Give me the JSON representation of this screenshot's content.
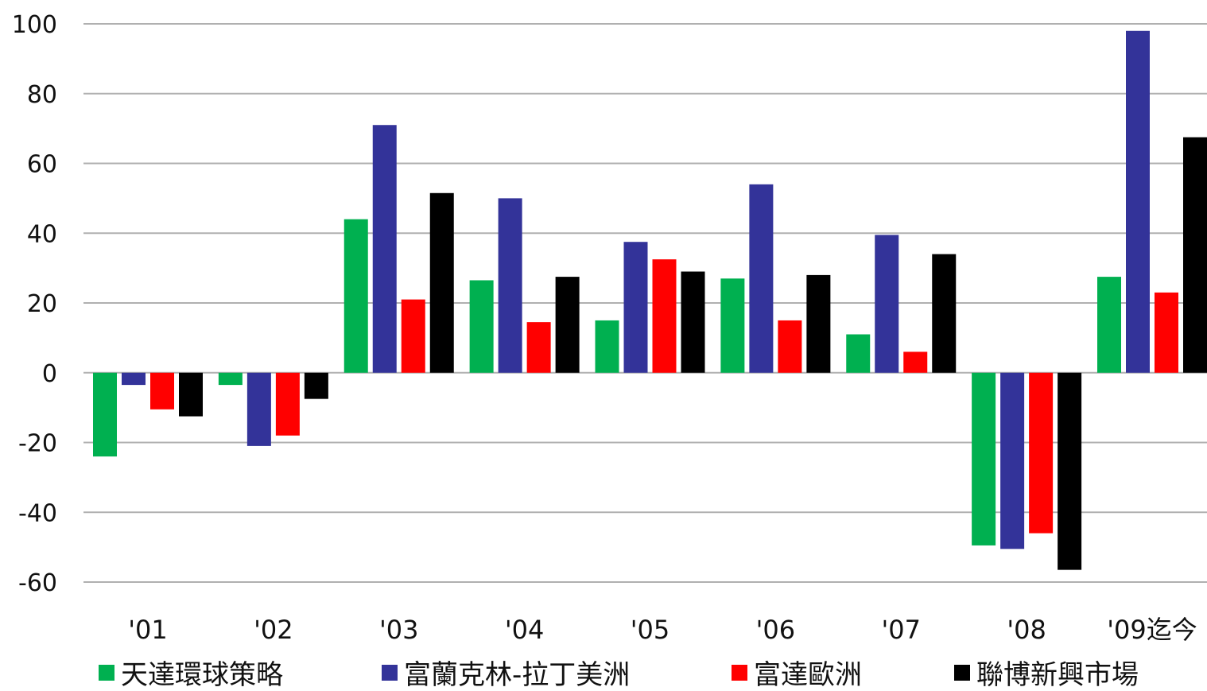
{
  "chart_data": {
    "type": "bar",
    "categories": [
      "'01",
      "'02",
      "'03",
      "'04",
      "'05",
      "'06",
      "'07",
      "'08",
      "'09迄今"
    ],
    "series": [
      {
        "name": "天達環球策略",
        "color": "#00b050",
        "values": [
          -24,
          -3.5,
          44,
          26.5,
          15,
          27,
          11,
          -49.5,
          27.5
        ]
      },
      {
        "name": "富蘭克林-拉丁美洲",
        "color": "#333399",
        "values": [
          -3.5,
          -21,
          71,
          50,
          37.5,
          54,
          39.5,
          -50.5,
          98
        ]
      },
      {
        "name": "富達歐洲",
        "color": "#ff0000",
        "values": [
          -10.5,
          -18,
          21,
          14.5,
          32.5,
          15,
          6,
          -46,
          23
        ]
      },
      {
        "name": "聯博新興市場",
        "color": "#000000",
        "values": [
          -12.5,
          -7.5,
          51.5,
          27.5,
          29,
          28,
          34,
          -56.5,
          67.5
        ]
      }
    ],
    "yticks": [
      "100",
      "80",
      "60",
      "40",
      "20",
      "0",
      "-20",
      "-40",
      "-60"
    ],
    "ylim": [
      -60,
      100
    ],
    "grid": true,
    "legend_position": "bottom",
    "title": "",
    "xlabel": "",
    "ylabel": ""
  }
}
